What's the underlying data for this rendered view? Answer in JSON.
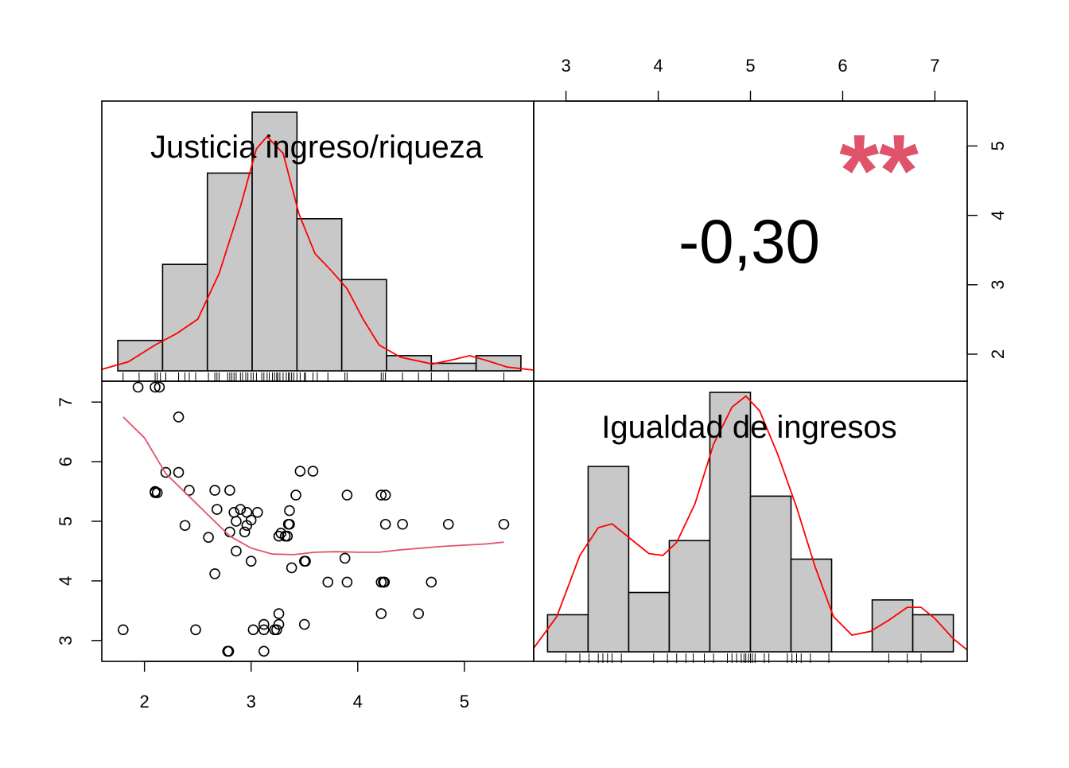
{
  "chart_data": {
    "type": "scatter",
    "subtype": "correlation-matrix",
    "variables": [
      "Justicia ingreso/riqueza",
      "Igualdad de ingresos"
    ],
    "correlation": {
      "label": "-0,30",
      "stars": "**"
    },
    "axes": {
      "justicia_ticks": [
        "2",
        "3",
        "4",
        "5"
      ],
      "justicia_range": [
        1.6,
        5.65
      ],
      "igualdad_ticks": [
        "3",
        "4",
        "5",
        "6",
        "7"
      ],
      "igualdad_range": [
        2.65,
        7.35
      ],
      "corr_scale_ticks": [
        "2",
        "3",
        "4",
        "5"
      ]
    },
    "histograms": {
      "justicia": {
        "breaks": [
          1.75,
          2.17,
          2.59,
          3.01,
          3.43,
          3.85,
          4.27,
          4.69,
          5.11,
          5.53
        ],
        "counts": [
          2,
          7,
          13,
          17,
          10,
          6,
          1,
          0.5,
          1
        ],
        "density": [
          [
            1.6,
            0.1
          ],
          [
            1.85,
            0.6
          ],
          [
            2.1,
            1.7
          ],
          [
            2.3,
            2.45
          ],
          [
            2.5,
            3.4
          ],
          [
            2.7,
            6.4
          ],
          [
            2.9,
            10.8
          ],
          [
            3.05,
            14.6
          ],
          [
            3.15,
            15.4
          ],
          [
            3.3,
            14.3
          ],
          [
            3.45,
            10.3
          ],
          [
            3.6,
            7.7
          ],
          [
            3.75,
            6.6
          ],
          [
            3.9,
            5.4
          ],
          [
            4.05,
            3.4
          ],
          [
            4.2,
            1.7
          ],
          [
            4.4,
            0.9
          ],
          [
            4.7,
            0.45
          ],
          [
            4.9,
            0.75
          ],
          [
            5.05,
            1.0
          ],
          [
            5.2,
            0.7
          ],
          [
            5.4,
            0.25
          ],
          [
            5.65,
            0.05
          ]
        ],
        "rug": [
          1.8,
          1.95,
          2.1,
          2.12,
          2.15,
          2.2,
          2.2,
          2.32,
          2.32,
          2.38,
          2.42,
          2.48,
          2.6,
          2.66,
          2.68,
          2.7,
          2.7,
          2.78,
          2.8,
          2.82,
          2.84,
          2.86,
          2.9,
          2.92,
          2.95,
          2.97,
          3.0,
          3.02,
          3.05,
          3.1,
          3.12,
          3.15,
          3.17,
          3.2,
          3.22,
          3.24,
          3.25,
          3.27,
          3.3,
          3.33,
          3.35,
          3.36,
          3.38,
          3.4,
          3.43,
          3.46,
          3.5,
          3.51,
          3.58,
          3.62,
          3.72,
          3.88,
          3.9,
          4.22,
          4.24,
          4.26,
          4.42,
          4.57,
          4.69,
          4.85,
          5.37
        ]
      },
      "igualdad": {
        "breaks": [
          2.8,
          3.24,
          3.68,
          4.12,
          4.56,
          5.0,
          5.44,
          5.88,
          6.32,
          6.76,
          7.2
        ],
        "counts": [
          1,
          5,
          1.6,
          3,
          7,
          4.2,
          2.5,
          0,
          1.4,
          1
        ],
        "density": [
          [
            2.65,
            0.1
          ],
          [
            2.9,
            0.95
          ],
          [
            3.15,
            2.6
          ],
          [
            3.35,
            3.35
          ],
          [
            3.5,
            3.45
          ],
          [
            3.7,
            3.05
          ],
          [
            3.9,
            2.65
          ],
          [
            4.05,
            2.6
          ],
          [
            4.2,
            2.95
          ],
          [
            4.4,
            4.0
          ],
          [
            4.6,
            5.6
          ],
          [
            4.8,
            6.6
          ],
          [
            4.95,
            6.9
          ],
          [
            5.1,
            6.5
          ],
          [
            5.3,
            5.3
          ],
          [
            5.5,
            3.9
          ],
          [
            5.7,
            2.3
          ],
          [
            5.9,
            0.95
          ],
          [
            6.1,
            0.45
          ],
          [
            6.3,
            0.55
          ],
          [
            6.5,
            0.85
          ],
          [
            6.7,
            1.2
          ],
          [
            6.85,
            1.2
          ],
          [
            7.0,
            0.9
          ],
          [
            7.2,
            0.35
          ],
          [
            7.35,
            0.05
          ]
        ],
        "rug": [
          3.0,
          3.15,
          3.25,
          3.35,
          3.4,
          3.45,
          3.5,
          3.6,
          3.95,
          4.1,
          4.2,
          4.3,
          4.38,
          4.5,
          4.6,
          4.75,
          4.8,
          4.85,
          4.9,
          4.93,
          4.95,
          4.98,
          5.0,
          5.02,
          5.05,
          5.15,
          5.2,
          5.4,
          5.45,
          5.5,
          5.55,
          5.65,
          5.85,
          6.5,
          6.7,
          6.85
        ]
      }
    },
    "scatter_points": [
      [
        1.94,
        7.25
      ],
      [
        2.1,
        7.25
      ],
      [
        2.14,
        7.25
      ],
      [
        2.32,
        6.75
      ],
      [
        2.2,
        5.82
      ],
      [
        2.32,
        5.82
      ],
      [
        2.1,
        5.5
      ],
      [
        2.1,
        5.48
      ],
      [
        2.12,
        5.48
      ],
      [
        2.42,
        5.52
      ],
      [
        2.66,
        5.52
      ],
      [
        2.8,
        5.52
      ],
      [
        2.84,
        5.15
      ],
      [
        2.9,
        5.2
      ],
      [
        2.96,
        5.15
      ],
      [
        3.06,
        5.15
      ],
      [
        3.36,
        5.18
      ],
      [
        3.42,
        5.44
      ],
      [
        3.46,
        5.84
      ],
      [
        3.58,
        5.84
      ],
      [
        3.9,
        5.44
      ],
      [
        4.22,
        5.44
      ],
      [
        4.26,
        5.44
      ],
      [
        2.68,
        5.2
      ],
      [
        2.38,
        4.93
      ],
      [
        2.6,
        4.73
      ],
      [
        2.8,
        4.82
      ],
      [
        2.86,
        5.0
      ],
      [
        2.94,
        4.82
      ],
      [
        2.96,
        4.93
      ],
      [
        3.0,
        5.02
      ],
      [
        3.26,
        4.75
      ],
      [
        3.28,
        4.8
      ],
      [
        3.32,
        4.75
      ],
      [
        3.34,
        4.75
      ],
      [
        3.35,
        4.95
      ],
      [
        3.36,
        4.95
      ],
      [
        4.26,
        4.95
      ],
      [
        4.42,
        4.95
      ],
      [
        4.85,
        4.95
      ],
      [
        5.37,
        4.95
      ],
      [
        2.86,
        4.5
      ],
      [
        3.0,
        4.33
      ],
      [
        3.38,
        4.22
      ],
      [
        3.5,
        4.33
      ],
      [
        3.51,
        4.33
      ],
      [
        3.88,
        4.38
      ],
      [
        2.66,
        4.12
      ],
      [
        3.72,
        3.98
      ],
      [
        3.9,
        3.98
      ],
      [
        4.22,
        3.98
      ],
      [
        4.24,
        3.98
      ],
      [
        4.25,
        3.98
      ],
      [
        4.69,
        3.98
      ],
      [
        3.26,
        3.45
      ],
      [
        4.22,
        3.45
      ],
      [
        4.57,
        3.45
      ],
      [
        3.12,
        3.27
      ],
      [
        3.26,
        3.27
      ],
      [
        3.5,
        3.27
      ],
      [
        1.8,
        3.18
      ],
      [
        2.48,
        3.18
      ],
      [
        3.02,
        3.18
      ],
      [
        3.12,
        3.18
      ],
      [
        3.22,
        3.18
      ],
      [
        3.24,
        3.18
      ],
      [
        2.78,
        2.82
      ],
      [
        2.79,
        2.82
      ],
      [
        3.12,
        2.82
      ]
    ],
    "smooth_line": [
      [
        1.8,
        6.75
      ],
      [
        2.0,
        6.4
      ],
      [
        2.2,
        5.8
      ],
      [
        2.4,
        5.45
      ],
      [
        2.6,
        5.1
      ],
      [
        2.8,
        4.75
      ],
      [
        3.0,
        4.55
      ],
      [
        3.2,
        4.45
      ],
      [
        3.4,
        4.44
      ],
      [
        3.6,
        4.48
      ],
      [
        3.8,
        4.49
      ],
      [
        4.0,
        4.48
      ],
      [
        4.2,
        4.48
      ],
      [
        4.4,
        4.52
      ],
      [
        4.6,
        4.55
      ],
      [
        4.8,
        4.58
      ],
      [
        5.0,
        4.6
      ],
      [
        5.2,
        4.62
      ],
      [
        5.37,
        4.65
      ]
    ],
    "colors": {
      "hist_fill": "#c8c8c8",
      "density_line": "#ff0000",
      "smooth_line": "#df536b",
      "stars": "#df536b",
      "frame": "#000000"
    }
  }
}
